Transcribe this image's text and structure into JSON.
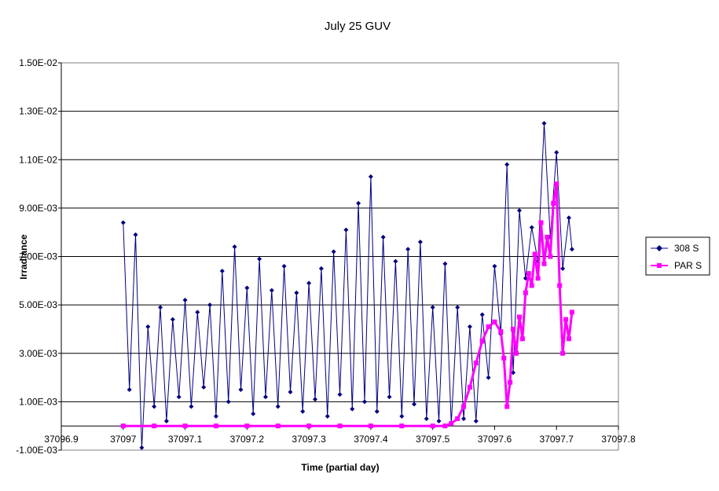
{
  "chart_data": {
    "type": "line",
    "title": "July 25 GUV",
    "xlabel": "Time (partial day)",
    "ylabel": "Irradiance",
    "xlim": [
      37096.9,
      37097.8
    ],
    "ylim": [
      -0.001,
      0.015
    ],
    "x_ticks": [
      "37096.9",
      "37097",
      "37097.1",
      "37097.2",
      "37097.3",
      "37097.4",
      "37097.5",
      "37097.6",
      "37097.7",
      "37097.8"
    ],
    "y_ticks": [
      "-1.00E-03",
      "1.00E-03",
      "3.00E-03",
      "5.00E-03",
      "7.00E-03",
      "9.00E-03",
      "1.10E-02",
      "1.30E-02",
      "1.50E-02"
    ],
    "grid": "horizontal major gridlines",
    "legend": "right",
    "series": [
      {
        "name": "308 S",
        "color": "#000080",
        "marker": "diamond",
        "x": [
          37097.0,
          37097.01,
          37097.02,
          37097.03,
          37097.04,
          37097.05,
          37097.06,
          37097.07,
          37097.08,
          37097.09,
          37097.1,
          37097.11,
          37097.12,
          37097.13,
          37097.14,
          37097.15,
          37097.16,
          37097.17,
          37097.18,
          37097.19,
          37097.2,
          37097.21,
          37097.22,
          37097.23,
          37097.24,
          37097.25,
          37097.26,
          37097.27,
          37097.28,
          37097.29,
          37097.3,
          37097.31,
          37097.32,
          37097.33,
          37097.34,
          37097.35,
          37097.36,
          37097.37,
          37097.38,
          37097.39,
          37097.4,
          37097.41,
          37097.42,
          37097.43,
          37097.44,
          37097.45,
          37097.46,
          37097.47,
          37097.48,
          37097.49,
          37097.5,
          37097.51,
          37097.52,
          37097.53,
          37097.54,
          37097.55,
          37097.56,
          37097.57,
          37097.58,
          37097.59,
          37097.6,
          37097.61,
          37097.62,
          37097.63,
          37097.64,
          37097.65,
          37097.66,
          37097.67,
          37097.68,
          37097.69,
          37097.7,
          37097.71,
          37097.72,
          37097.725
        ],
        "values": [
          0.0084,
          0.0015,
          0.0079,
          -0.0009,
          0.0041,
          0.0008,
          0.0049,
          0.0002,
          0.0044,
          0.0012,
          0.0052,
          0.0008,
          0.0047,
          0.0016,
          0.005,
          0.0004,
          0.0064,
          0.001,
          0.0074,
          0.0015,
          0.0057,
          0.0005,
          0.0069,
          0.0012,
          0.0056,
          0.0008,
          0.0066,
          0.0014,
          0.0055,
          0.0006,
          0.0059,
          0.0011,
          0.0065,
          0.0004,
          0.0072,
          0.0013,
          0.0081,
          0.0007,
          0.0092,
          0.001,
          0.0103,
          0.0006,
          0.0078,
          0.0012,
          0.0068,
          0.0004,
          0.0073,
          0.0009,
          0.0076,
          0.0003,
          0.0049,
          0.0002,
          0.0067,
          0.0001,
          0.0049,
          0.0003,
          0.0041,
          0.0002,
          0.0046,
          0.002,
          0.0066,
          0.0038,
          0.0108,
          0.0022,
          0.0089,
          0.0061,
          0.0082,
          0.0068,
          0.0125,
          0.0078,
          0.0113,
          0.0065,
          0.0086,
          0.0073
        ]
      },
      {
        "name": "PAR S",
        "color": "#FF00FF",
        "marker": "square",
        "x": [
          37097.0,
          37097.05,
          37097.1,
          37097.15,
          37097.2,
          37097.25,
          37097.3,
          37097.35,
          37097.4,
          37097.45,
          37097.5,
          37097.52,
          37097.53,
          37097.54,
          37097.55,
          37097.56,
          37097.57,
          37097.58,
          37097.59,
          37097.6,
          37097.61,
          37097.615,
          37097.62,
          37097.625,
          37097.63,
          37097.635,
          37097.64,
          37097.645,
          37097.65,
          37097.655,
          37097.66,
          37097.665,
          37097.67,
          37097.675,
          37097.68,
          37097.685,
          37097.69,
          37097.695,
          37097.7,
          37097.705,
          37097.71,
          37097.715,
          37097.72,
          37097.725
        ],
        "values": [
          0.0,
          0.0,
          0.0,
          0.0,
          0.0,
          0.0,
          0.0,
          0.0,
          0.0,
          0.0,
          0.0,
          0.0,
          0.0001,
          0.0003,
          0.0008,
          0.0016,
          0.0026,
          0.0035,
          0.0041,
          0.0043,
          0.0039,
          0.0028,
          0.0008,
          0.0018,
          0.004,
          0.003,
          0.0045,
          0.0036,
          0.0055,
          0.0063,
          0.0058,
          0.0071,
          0.0061,
          0.0084,
          0.0067,
          0.0078,
          0.007,
          0.0092,
          0.01,
          0.0058,
          0.003,
          0.0044,
          0.0036,
          0.0047
        ]
      }
    ]
  }
}
